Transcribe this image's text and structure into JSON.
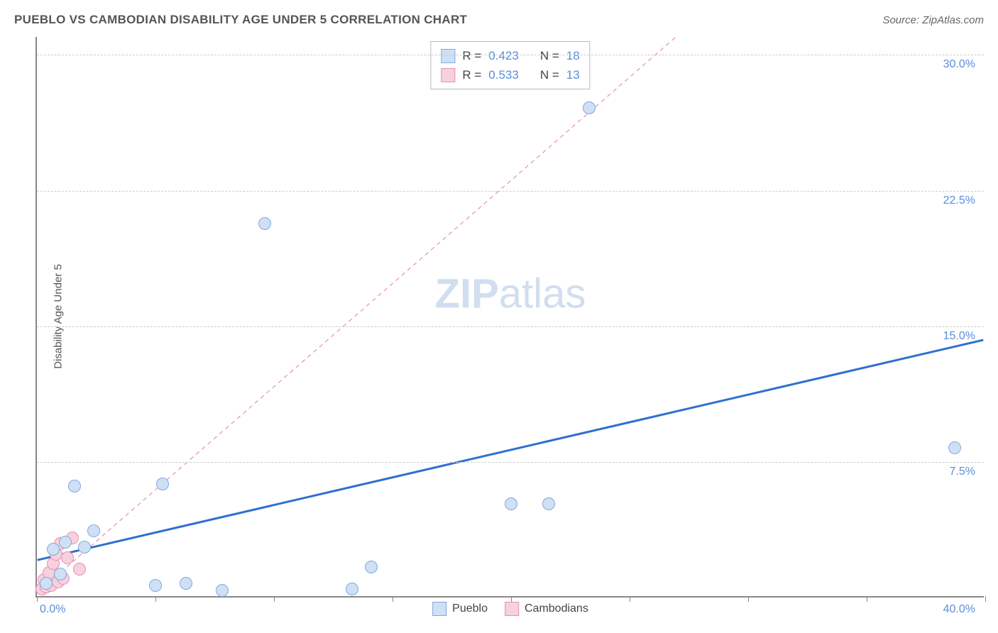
{
  "header": {
    "title": "PUEBLO VS CAMBODIAN DISABILITY AGE UNDER 5 CORRELATION CHART",
    "source": "Source: ZipAtlas.com"
  },
  "y_axis_label": "Disability Age Under 5",
  "watermark": {
    "bold": "ZIP",
    "rest": "atlas"
  },
  "chart": {
    "type": "scatter",
    "xlim": [
      0,
      40
    ],
    "ylim": [
      0,
      31
    ],
    "x_origin_label": "0.0%",
    "x_max_label": "40.0%",
    "x_tick_positions": [
      0,
      5,
      10,
      15,
      20,
      25,
      30,
      35,
      40
    ],
    "y_gridlines": [
      {
        "value": 7.5,
        "label": "7.5%"
      },
      {
        "value": 15.0,
        "label": "15.0%"
      },
      {
        "value": 22.5,
        "label": "22.5%"
      },
      {
        "value": 30.0,
        "label": "30.0%"
      }
    ],
    "background_color": "#ffffff",
    "grid_color": "#cccccc",
    "axis_color": "#888888",
    "tick_label_color": "#5b8dd6",
    "series": [
      {
        "name": "Pueblo",
        "marker_fill": "#cfe0f5",
        "marker_stroke": "#7fa9dd",
        "marker_radius": 9,
        "trend": {
          "x1": 0,
          "y1": 2.0,
          "x2": 40,
          "y2": 14.2,
          "color": "#2f6fd0",
          "width": 3,
          "dash": "none"
        },
        "points": [
          {
            "x": 0.4,
            "y": 0.7
          },
          {
            "x": 0.7,
            "y": 2.6
          },
          {
            "x": 1.0,
            "y": 1.2
          },
          {
            "x": 1.2,
            "y": 3.0
          },
          {
            "x": 1.6,
            "y": 6.1
          },
          {
            "x": 2.0,
            "y": 2.7
          },
          {
            "x": 2.4,
            "y": 3.6
          },
          {
            "x": 5.0,
            "y": 0.6
          },
          {
            "x": 5.3,
            "y": 6.2
          },
          {
            "x": 6.3,
            "y": 0.7
          },
          {
            "x": 7.8,
            "y": 0.3
          },
          {
            "x": 9.6,
            "y": 20.6
          },
          {
            "x": 13.3,
            "y": 0.4
          },
          {
            "x": 14.1,
            "y": 1.6
          },
          {
            "x": 20.0,
            "y": 5.1
          },
          {
            "x": 21.6,
            "y": 5.1
          },
          {
            "x": 23.3,
            "y": 27.0
          },
          {
            "x": 38.7,
            "y": 8.2
          }
        ]
      },
      {
        "name": "Cambodians",
        "marker_fill": "#f7d1de",
        "marker_stroke": "#e98fb0",
        "marker_radius": 9,
        "trend": {
          "x1": 0,
          "y1": 0.2,
          "x2": 27,
          "y2": 31.0,
          "color": "#e98fb0",
          "width": 1.2,
          "dash": "6,5"
        },
        "points": [
          {
            "x": 0.2,
            "y": 0.4
          },
          {
            "x": 0.3,
            "y": 0.9
          },
          {
            "x": 0.4,
            "y": 0.5
          },
          {
            "x": 0.5,
            "y": 1.3
          },
          {
            "x": 0.6,
            "y": 0.6
          },
          {
            "x": 0.7,
            "y": 1.8
          },
          {
            "x": 0.8,
            "y": 2.3
          },
          {
            "x": 0.9,
            "y": 0.8
          },
          {
            "x": 1.0,
            "y": 2.9
          },
          {
            "x": 1.1,
            "y": 1.0
          },
          {
            "x": 1.3,
            "y": 2.1
          },
          {
            "x": 1.5,
            "y": 3.2
          },
          {
            "x": 1.8,
            "y": 1.5
          }
        ]
      }
    ]
  },
  "correlation_box": {
    "rows": [
      {
        "swatch_fill": "#cfe0f5",
        "swatch_stroke": "#7fa9dd",
        "r_label": "R =",
        "r_value": "0.423",
        "n_label": "N =",
        "n_value": "18"
      },
      {
        "swatch_fill": "#f7d1de",
        "swatch_stroke": "#e98fb0",
        "r_label": "R =",
        "r_value": "0.533",
        "n_label": "N =",
        "n_value": "13"
      }
    ]
  },
  "bottom_legend": {
    "items": [
      {
        "swatch_fill": "#cfe0f5",
        "swatch_stroke": "#7fa9dd",
        "label": "Pueblo"
      },
      {
        "swatch_fill": "#f7d1de",
        "swatch_stroke": "#e98fb0",
        "label": "Cambodians"
      }
    ]
  }
}
